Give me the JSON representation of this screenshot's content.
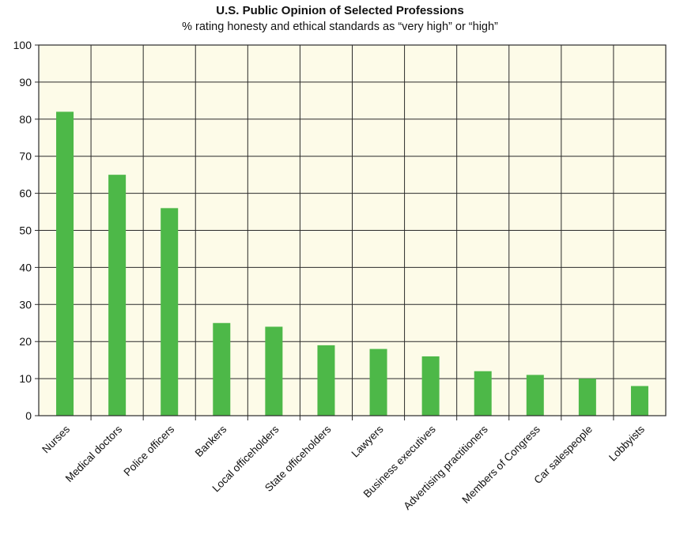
{
  "chart_data": {
    "type": "bar",
    "title": "U.S. Public Opinion of Selected Professions",
    "subtitle": "% rating honesty and ethical standards as “very high” or “high”",
    "xlabel": "",
    "ylabel": "",
    "categories": [
      "Nurses",
      "Medical doctors",
      "Police officers",
      "Bankers",
      "Local officeholders",
      "State officeholders",
      "Lawyers",
      "Business executives",
      "Advertising practitioners",
      "Members of Congress",
      "Car salespeople",
      "Lobbyists"
    ],
    "values": [
      82,
      65,
      56,
      25,
      24,
      19,
      18,
      16,
      12,
      11,
      10,
      8
    ],
    "ylim": [
      0,
      100
    ],
    "yticks": [
      "0",
      "10",
      "20",
      "30",
      "40",
      "50",
      "60",
      "70",
      "80",
      "90",
      "100"
    ],
    "grid": true,
    "legend": "none",
    "colors": {
      "bar": "#4db848",
      "plot_background": "#fdfbe8",
      "grid": "#2a2a2a"
    }
  }
}
